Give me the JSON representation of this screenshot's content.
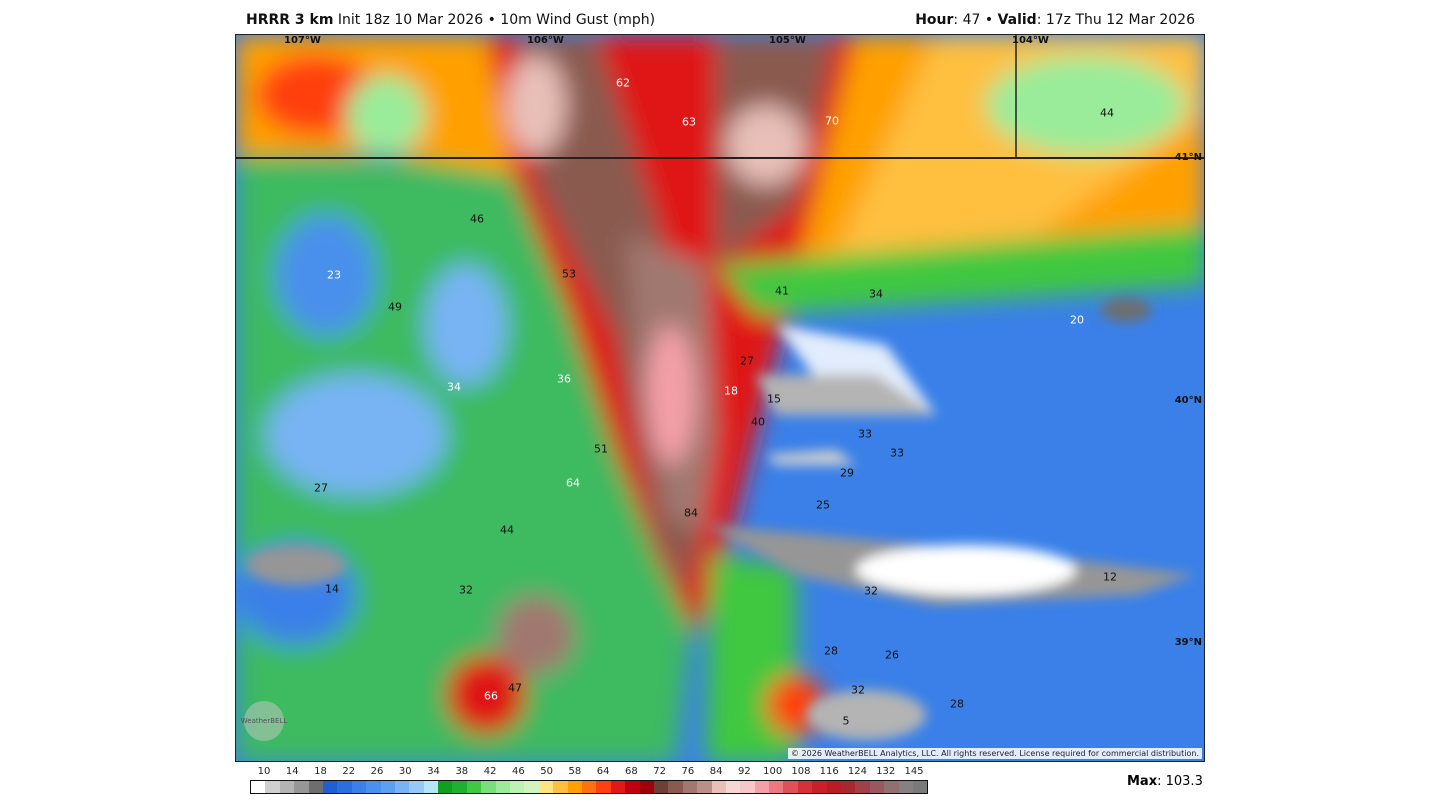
{
  "header": {
    "model": "HRRR 3 km",
    "init": "Init 18z 10 Mar 2026",
    "separator": "•",
    "field": "10m Wind Gust (mph)",
    "hour_label": "Hour",
    "hour": ": 47",
    "valid_label": "Valid",
    "valid": ": 17z Thu 12 Mar 2026"
  },
  "map": {
    "lon_labels": [
      "107°W",
      "106°W",
      "105°W",
      "104°W"
    ],
    "lat_labels": [
      "41°N",
      "40°N",
      "39°N"
    ],
    "values": [
      "62",
      "63",
      "70",
      "44",
      "46",
      "23",
      "53",
      "41",
      "34",
      "20",
      "49",
      "27",
      "34",
      "36",
      "18",
      "15",
      "40",
      "33",
      "33",
      "51",
      "29",
      "64",
      "27",
      "25",
      "84",
      "44",
      "14",
      "32",
      "32",
      "12",
      "28",
      "26",
      "66",
      "47",
      "32",
      "28",
      "5"
    ],
    "copyright": "© 2026 WeatherBELL Analytics, LLC. All rights reserved. License required for commercial distribution.",
    "logo": "WeatherBELL"
  },
  "colorbar": {
    "labels": [
      "10",
      "14",
      "18",
      "22",
      "26",
      "30",
      "34",
      "38",
      "42",
      "46",
      "50",
      "58",
      "64",
      "68",
      "72",
      "76",
      "84",
      "92",
      "100",
      "108",
      "116",
      "124",
      "132",
      "145"
    ],
    "colors": [
      "#ffffff",
      "#d0d0d0",
      "#b4b4b4",
      "#969696",
      "#6e6e6e",
      "#1e5fd2",
      "#2a6fe0",
      "#3a80e8",
      "#4a90ec",
      "#5ea0f0",
      "#78b4f4",
      "#96c8f8",
      "#b4e6f8",
      "#10a020",
      "#20b030",
      "#40c840",
      "#78e078",
      "#9aec9a",
      "#bef2b4",
      "#d2f5c0",
      "#ffe680",
      "#ffc040",
      "#ffa000",
      "#ff7010",
      "#ff4010",
      "#e01818",
      "#c00010",
      "#a00008",
      "#6e4034",
      "#8a5a50",
      "#a07870",
      "#b89088",
      "#e8c0b8",
      "#f4d8d4",
      "#f8c8c8",
      "#f4a0a8",
      "#ec7880",
      "#e05058",
      "#d83038",
      "#c82028",
      "#b81c24",
      "#a82830",
      "#a04048",
      "#985860",
      "#907070",
      "#888080",
      "#7a7a7a"
    ]
  },
  "max": {
    "label": "Max",
    "value": ": 103.3"
  }
}
